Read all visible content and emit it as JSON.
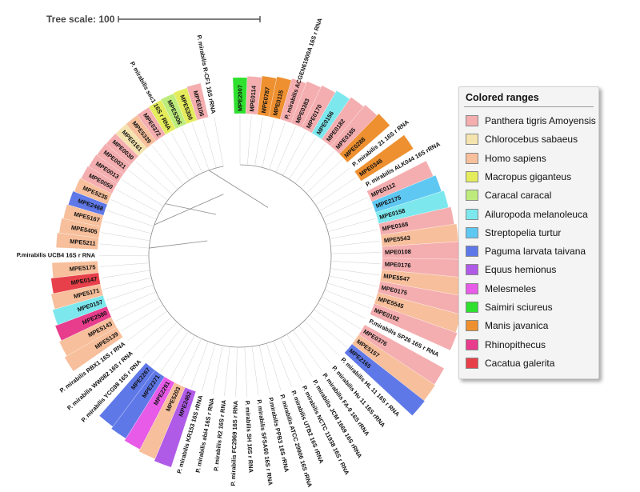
{
  "tree_scale": {
    "label": "Tree scale: 100"
  },
  "legend": {
    "title": "Colored ranges",
    "items": [
      {
        "label": "Panthera tigris Amoyensis",
        "color": "#f4aeb0"
      },
      {
        "label": "Chlorocebus sabaeus",
        "color": "#f4e3ae"
      },
      {
        "label": "Homo sapiens",
        "color": "#f7bf9b"
      },
      {
        "label": "Macropus giganteus",
        "color": "#e4ec5c"
      },
      {
        "label": "Caracal caracal",
        "color": "#bdec7c"
      },
      {
        "label": "Ailuropoda melanoleuca",
        "color": "#7ce8ee"
      },
      {
        "label": "Streptopelia turtur",
        "color": "#5ec8f2"
      },
      {
        "label": "Paguma larvata taivana",
        "color": "#5f78e8"
      },
      {
        "label": "Equus hemionus",
        "color": "#b05ae8"
      },
      {
        "label": "Melesmeles",
        "color": "#e85ae8"
      },
      {
        "label": "Saimiri sciureus",
        "color": "#2fe02f"
      },
      {
        "label": "Manis javanica",
        "color": "#ee9030"
      },
      {
        "label": "Rhinopithecus",
        "color": "#e83c8c"
      },
      {
        "label": "Cacatua galerita",
        "color": "#e8404a"
      }
    ]
  },
  "leaves": [
    {
      "label": "MPE2007",
      "color": "#2fe02f"
    },
    {
      "label": "MPE0114",
      "color": "#f4aeb0"
    },
    {
      "label": "MPE0787",
      "color": "#ee9030"
    },
    {
      "label": "MPE0115",
      "color": "#ee9030"
    },
    {
      "label": "P. mirabilis ACGEN61900A 16S r RNA",
      "color": "#f4aeb0"
    },
    {
      "label": "MPE0383",
      "color": "#f4aeb0"
    },
    {
      "label": "MPE0170",
      "color": "#f4aeb0"
    },
    {
      "label": "MPE0156",
      "color": "#7ce8ee"
    },
    {
      "label": "MPE0182",
      "color": "#f4aeb0"
    },
    {
      "label": "MPE0185",
      "color": "#f4aeb0"
    },
    {
      "label": "MPE0288",
      "color": "#ee9030"
    },
    {
      "label": "P. mirabilis 21 16S r RNA",
      "color": ""
    },
    {
      "label": "MPE0346",
      "color": "#ee9030"
    },
    {
      "label": "P. mirabilis ALK044 16S rRNA",
      "color": ""
    },
    {
      "label": "MPE0112",
      "color": "#f4aeb0"
    },
    {
      "label": "MPE2175",
      "color": "#5ec8f2"
    },
    {
      "label": "MPE0158",
      "color": "#7ce8ee"
    },
    {
      "label": "MPE0168",
      "color": "#f4aeb0"
    },
    {
      "label": "MPE5543",
      "color": "#f7bf9b"
    },
    {
      "label": "MPE0108",
      "color": "#f4aeb0"
    },
    {
      "label": "MPE0176",
      "color": "#f4aeb0"
    },
    {
      "label": "MPE5547",
      "color": "#f7bf9b"
    },
    {
      "label": "MPE0175",
      "color": "#f4aeb0"
    },
    {
      "label": "MPE5545",
      "color": "#f7bf9b"
    },
    {
      "label": "MPE0102",
      "color": "#f4aeb0"
    },
    {
      "label": "P.mirabilis SP26 16S r RNA",
      "color": ""
    },
    {
      "label": "MPE0376",
      "color": "#f4aeb0"
    },
    {
      "label": "MPE5157",
      "color": "#f7bf9b"
    },
    {
      "label": "MPE2165",
      "color": "#5f78e8"
    },
    {
      "label": "P. mirabilis HL 11 16S r RNA",
      "color": ""
    },
    {
      "label": "P. mirabilis Hu 11 16S rRNA",
      "color": ""
    },
    {
      "label": "P. mirabilis FA-9 16S rRNA",
      "color": ""
    },
    {
      "label": "P. mirabilis JCM 1669 16S rRNA",
      "color": ""
    },
    {
      "label": "P. mirabilis NCTC 11938 16S r RNA",
      "color": ""
    },
    {
      "label": "P. mirabilis UTB2 16S rRNA",
      "color": ""
    },
    {
      "label": "P. mirabilis ATCC 29906 16S rRNA",
      "color": ""
    },
    {
      "label": "P.mirabilis PPB3 16S rRNA",
      "color": ""
    },
    {
      "label": "P. mirabilis SFSA60 16S r RNA",
      "color": ""
    },
    {
      "label": "P. mirabilis SH 16S r RNA",
      "color": ""
    },
    {
      "label": "P. mirabilis FC2969 16S r RNA",
      "color": ""
    },
    {
      "label": "P. mirabilis R2 16S r RNA",
      "color": ""
    },
    {
      "label": "P. mirabilis abi4 16S r RNA",
      "color": ""
    },
    {
      "label": "P. mirabilis KR153 16S rRNA",
      "color": ""
    },
    {
      "label": "MPE2462",
      "color": "#b05ae8"
    },
    {
      "label": "MPE5203",
      "color": "#f7bf9b"
    },
    {
      "label": "MPE2291",
      "color": "#e85ae8"
    },
    {
      "label": "MPE2371",
      "color": "#5f78e8"
    },
    {
      "label": "MPE2267",
      "color": "#5f78e8"
    },
    {
      "label": "P. mirabilis YCG98 16S r RNA",
      "color": ""
    },
    {
      "label": "P. mirabilis WW082 16S r RNA",
      "color": ""
    },
    {
      "label": "P. mirabilis RBX1 16S r RNA",
      "color": ""
    },
    {
      "label": "MPE5139",
      "color": "#f7bf9b"
    },
    {
      "label": "MPE5143",
      "color": "#f7bf9b"
    },
    {
      "label": "MPE2580",
      "color": "#e83c8c"
    },
    {
      "label": "MPE0157",
      "color": "#7ce8ee"
    },
    {
      "label": "MPE5171",
      "color": "#f7bf9b"
    },
    {
      "label": "MPE0147",
      "color": "#e8404a"
    },
    {
      "label": "MPE5175",
      "color": "#f7bf9b"
    },
    {
      "label": "P.mirabilis UCB4 16S r RNA",
      "color": ""
    },
    {
      "label": "MPE5211",
      "color": "#f7bf9b"
    },
    {
      "label": "MPE5405",
      "color": "#f7bf9b"
    },
    {
      "label": "MPE5167",
      "color": "#f7bf9b"
    },
    {
      "label": "MPE2468",
      "color": "#5f78e8"
    },
    {
      "label": "MPE5235",
      "color": "#f7bf9b"
    },
    {
      "label": "MPE0050",
      "color": "#f4aeb0"
    },
    {
      "label": "MPE0013",
      "color": "#f4aeb0"
    },
    {
      "label": "MPE0021",
      "color": "#f4aeb0"
    },
    {
      "label": "MPE0030",
      "color": "#f4aeb0"
    },
    {
      "label": "MPE0161",
      "color": "#f4e3ae"
    },
    {
      "label": "MPE5339",
      "color": "#f7bf9b"
    },
    {
      "label": "MPE0372",
      "color": "#f4aeb0"
    },
    {
      "label": "P. mirabilis sec1 16S r RNA",
      "color": "#e4ec5c"
    },
    {
      "label": "MPE5306",
      "color": "#bdec7c"
    },
    {
      "label": "MPE5300",
      "color": "#e4ec5c"
    },
    {
      "label": "MPE0106",
      "color": "#f4aeb0"
    },
    {
      "label": "P. mirabilis R-CF1 16S rRNA",
      "color": ""
    }
  ]
}
